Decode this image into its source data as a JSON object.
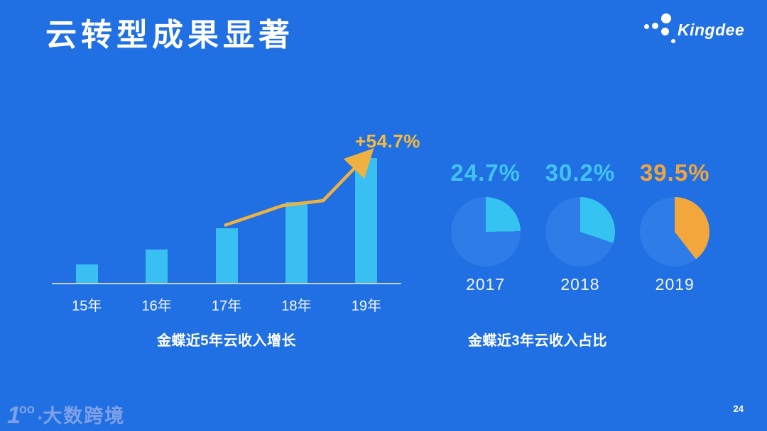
{
  "slide": {
    "title": "云转型成果显著",
    "page_number": "24",
    "background_color": "#2170E3"
  },
  "logo": {
    "text": "Kingdee"
  },
  "watermark": {
    "logo_text": "1",
    "logo_text_sup": "oo",
    "star": "✦",
    "text": "大数跨境"
  },
  "bar_chart": {
    "caption": "金蝶近5年云收入增长",
    "annotation_label": "+54.7%",
    "bar_color": "#3ABFF2",
    "trend_color": "#EFB240"
  },
  "pie_charts": {
    "caption": "金蝶近3年云收入占比",
    "base_color": "#2E7CE8",
    "items": [
      {
        "year": "2017",
        "pct_label": "24.7%",
        "value": 24.7,
        "wedge_color": "#35C4F2",
        "label_color": "#41C4F3"
      },
      {
        "year": "2018",
        "pct_label": "30.2%",
        "value": 30.2,
        "wedge_color": "#35C4F2",
        "label_color": "#41C4F3"
      },
      {
        "year": "2019",
        "pct_label": "39.5%",
        "value": 39.5,
        "wedge_color": "#F2A63C",
        "label_color": "#F0A63C"
      }
    ]
  },
  "chart_data": [
    {
      "type": "bar",
      "title": "金蝶近5年云收入增长",
      "categories": [
        "15年",
        "16年",
        "17年",
        "18年",
        "19年"
      ],
      "values": [
        26,
        47,
        77,
        114,
        176
      ],
      "value_units": "relative bar height (axis unlabeled, estimated px)",
      "annotation": "+54.7% growth arrow from 17年 bar top to 19年 bar top",
      "xlabel": "",
      "ylabel": "",
      "grid": false,
      "legend": false,
      "bar_color": "#3ABFF2",
      "ylim": [
        0,
        180
      ]
    },
    {
      "type": "pie",
      "title": "金蝶近3年云收入占比",
      "categories": [
        "2017",
        "2018",
        "2019"
      ],
      "values": [
        24.7,
        30.2,
        39.5
      ],
      "value_units": "percent (cloud revenue share; remainder is other revenue)",
      "slice_colors": [
        "#35C4F2",
        "#35C4F2",
        "#F2A63C"
      ],
      "remainder_color": "#2E7CE8",
      "start_angle": "12 o'clock, clockwise",
      "legend": false
    }
  ]
}
